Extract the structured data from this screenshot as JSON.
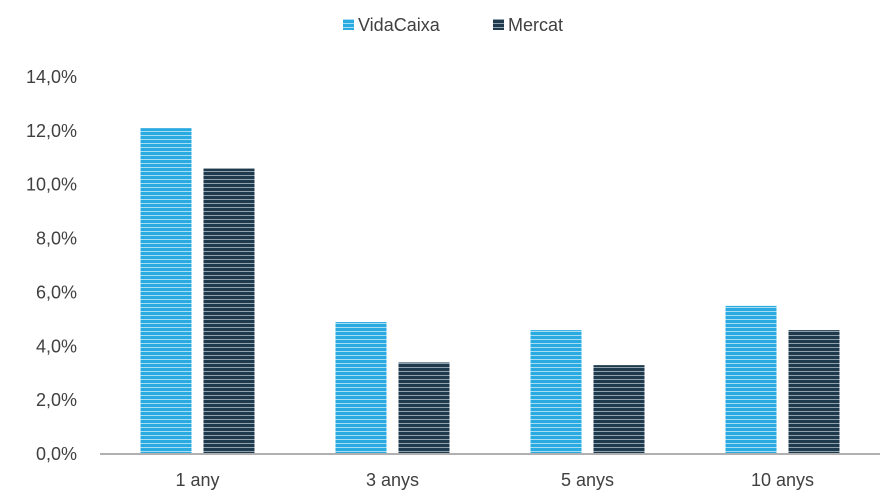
{
  "chart_data": {
    "type": "bar",
    "categories": [
      "1 any",
      "3 anys",
      "5 anys",
      "10 anys"
    ],
    "series": [
      {
        "name": "VidaCaixa",
        "values": [
          12.1,
          4.9,
          4.6,
          5.5
        ],
        "color": "#29abe2"
      },
      {
        "name": "Mercat",
        "values": [
          10.6,
          3.4,
          3.3,
          4.6
        ],
        "color": "#1f3a4d"
      }
    ],
    "ylim": [
      0,
      14
    ],
    "yticks": [
      0,
      2,
      4,
      6,
      8,
      10,
      12,
      14
    ],
    "ytick_labels": [
      "0,0%",
      "2,0%",
      "4,0%",
      "6,0%",
      "8,0%",
      "10,0%",
      "12,0%",
      "14,0%"
    ],
    "title": "",
    "xlabel": "",
    "ylabel": "",
    "grid": false,
    "legend_position": "top-center",
    "bar_fill_pattern": "horizontal-stripes"
  }
}
